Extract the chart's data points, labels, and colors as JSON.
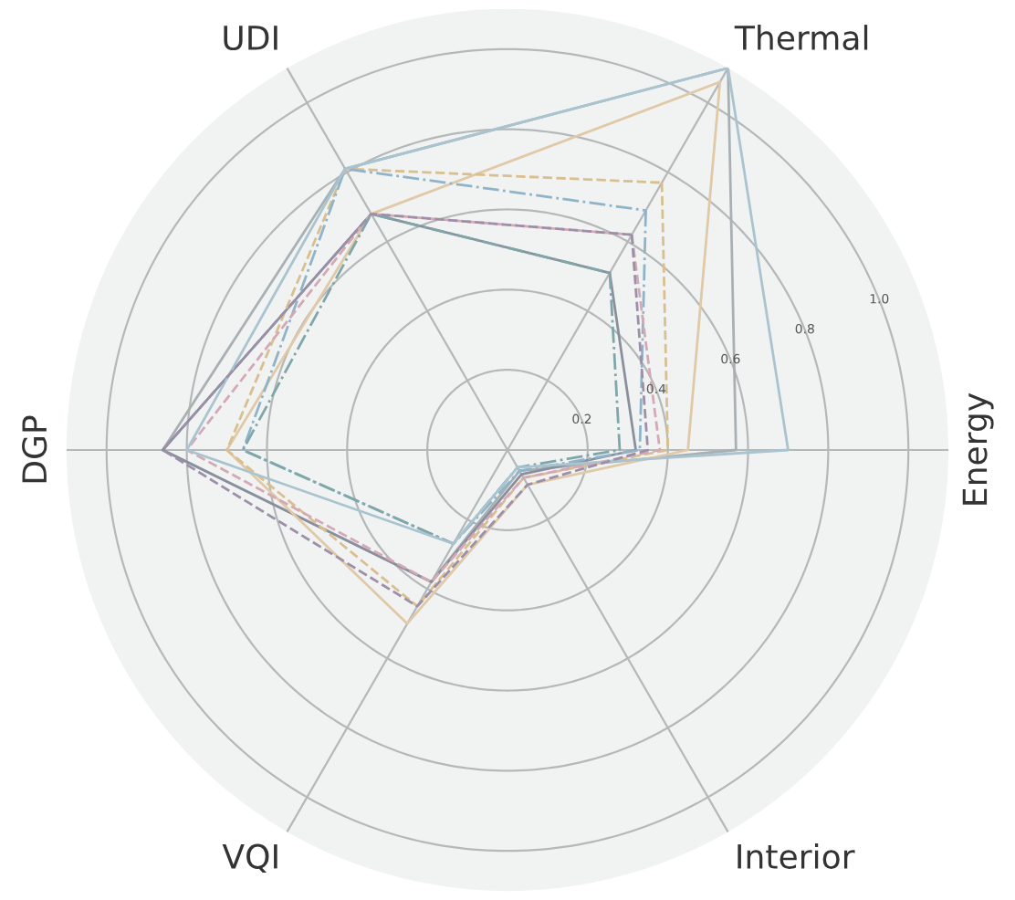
{
  "chart_data": {
    "type": "radar",
    "categories": [
      "Thermal",
      "Energy",
      "Interior",
      "VQI",
      "DGP",
      "UDI"
    ],
    "ylim": [
      0,
      1.1
    ],
    "yticks": [
      0.2,
      0.4,
      0.6,
      0.8,
      {
        "value": 1,
        "label": "1.0"
      }
    ],
    "grid": true,
    "marker": "none",
    "series": [
      {
        "color": "#a9b0b3",
        "line_style": "solid",
        "values": [
          1.1,
          0.57,
          0.06,
          0.38,
          0.86,
          0.81
        ]
      },
      {
        "color": "#8a8f9e",
        "line_style": "solid",
        "values": [
          0.51,
          0.32,
          0.07,
          0.38,
          0.86,
          0.68
        ]
      },
      {
        "color": "#e0c9a6",
        "line_style": "solid",
        "values": [
          1.06,
          0.45,
          0.1,
          0.5,
          0.7,
          0.68
        ]
      },
      {
        "color": "#d9bf8f",
        "line_style": "dashed",
        "values": [
          0.77,
          0.4,
          0.08,
          0.45,
          0.7,
          0.81
        ]
      },
      {
        "color": "#8fb3c9",
        "line_style": "dashdot",
        "values": [
          0.69,
          0.33,
          0.06,
          0.27,
          0.66,
          0.81
        ]
      },
      {
        "color": "#d4a9b5",
        "line_style": "dashed",
        "values": [
          0.62,
          0.38,
          0.08,
          0.38,
          0.8,
          0.68
        ]
      },
      {
        "color": "#7fa6a8",
        "line_style": "dashdot",
        "values": [
          0.51,
          0.28,
          0.05,
          0.27,
          0.66,
          0.68
        ]
      },
      {
        "color": "#a9c4cf",
        "line_style": "solid",
        "values": [
          1.1,
          0.7,
          0.05,
          0.27,
          0.8,
          0.81
        ]
      },
      {
        "color": "#9d8fa8",
        "line_style": "dashed",
        "values": [
          0.62,
          0.35,
          0.1,
          0.45,
          0.86,
          0.68
        ]
      }
    ]
  }
}
